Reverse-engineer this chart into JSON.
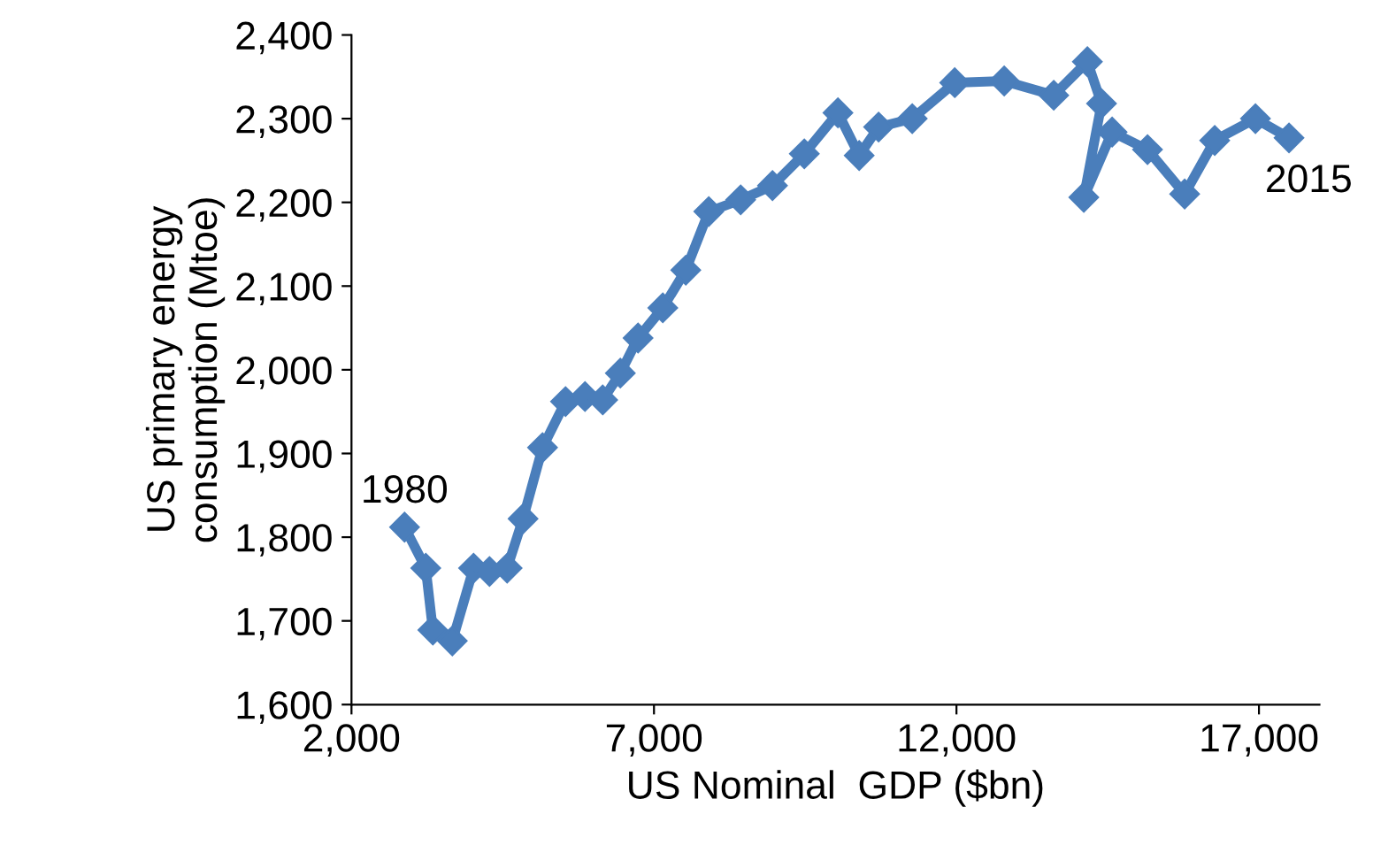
{
  "chart_data": {
    "type": "line",
    "xlabel": "US Nominal  GDP ($bn)",
    "ylabel": "US primary energy\nconsumption (Mtoe)",
    "xlim": [
      2000,
      18000
    ],
    "xticks": [
      {
        "value": 2000,
        "label": "2,000"
      },
      {
        "value": 7000,
        "label": "7,000"
      },
      {
        "value": 12000,
        "label": "12,000"
      },
      {
        "value": 17000,
        "label": "17,000"
      }
    ],
    "ylim": [
      1600,
      2400
    ],
    "yticks": [
      {
        "value": 1600,
        "label": "1,600"
      },
      {
        "value": 1700,
        "label": "1,700"
      },
      {
        "value": 1800,
        "label": "1,800"
      },
      {
        "value": 1900,
        "label": "1,900"
      },
      {
        "value": 2000,
        "label": "2,000"
      },
      {
        "value": 2100,
        "label": "2,100"
      },
      {
        "value": 2200,
        "label": "2,200"
      },
      {
        "value": 2300,
        "label": "2,300"
      },
      {
        "value": 2400,
        "label": "2,400"
      }
    ],
    "grid": false,
    "legend": false,
    "marker": "diamond",
    "line_style": "solid",
    "series": [
      {
        "color": "#4a7ebb",
        "x": [
          2877,
          3228,
          3345,
          3667,
          4018,
          4281,
          4573,
          4836,
          5158,
          5538,
          5860,
          6152,
          6444,
          6737,
          7146,
          7526,
          7906,
          8433,
          8959,
          9485,
          10041,
          10392,
          10713,
          11269,
          11971,
          12789,
          13608,
          14164,
          14398,
          14105,
          14573,
          15158,
          15772,
          16269,
          16942,
          17497
        ],
        "values": [
          1812,
          1763,
          1689,
          1676,
          1763,
          1759,
          1763,
          1822,
          1907,
          1962,
          1968,
          1964,
          1996,
          2038,
          2074,
          2119,
          2189,
          2203,
          2220,
          2258,
          2307,
          2256,
          2290,
          2300,
          2343,
          2345,
          2328,
          2368,
          2318,
          2206,
          2284,
          2263,
          2210,
          2274,
          2300,
          2277
        ]
      }
    ],
    "annotations": [
      {
        "text": "1980",
        "x": 2877,
        "y": 1812
      },
      {
        "text": "2015",
        "x": 17497,
        "y": 2277
      }
    ]
  }
}
